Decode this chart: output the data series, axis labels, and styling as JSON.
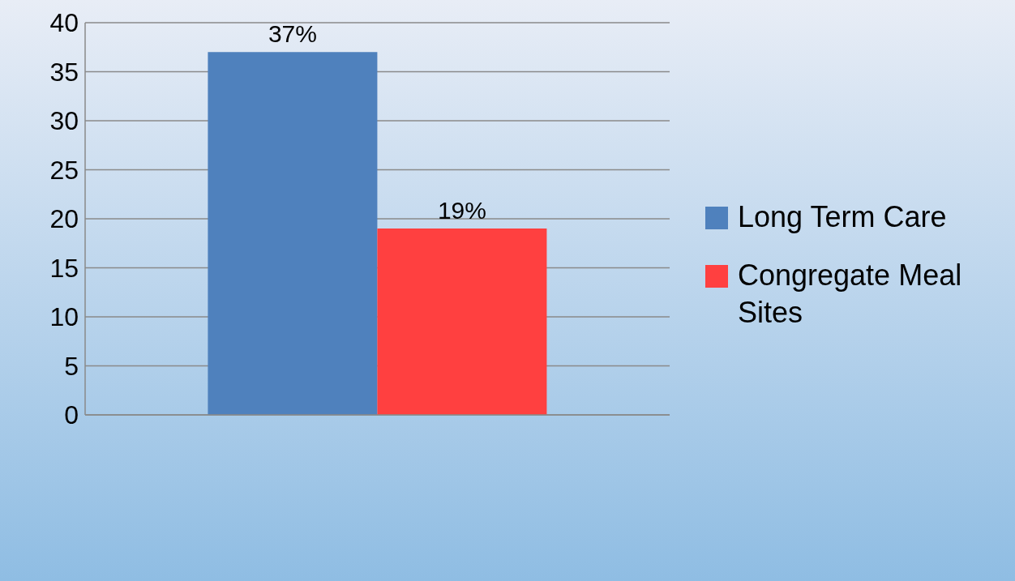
{
  "chart_data": {
    "type": "bar",
    "categories": [
      null
    ],
    "series": [
      {
        "name": "Long Term Care",
        "color": "#4f81bd",
        "values": [
          37
        ],
        "value_labels": [
          "37%"
        ]
      },
      {
        "name": "Congregate Meal Sites",
        "color": "#ff4040",
        "values": [
          19
        ],
        "value_labels": [
          "19%"
        ]
      }
    ],
    "ylim": [
      0,
      40
    ],
    "yticks": [
      0,
      5,
      10,
      15,
      20,
      25,
      30,
      35,
      40
    ],
    "grid": "y",
    "legend": "right"
  }
}
